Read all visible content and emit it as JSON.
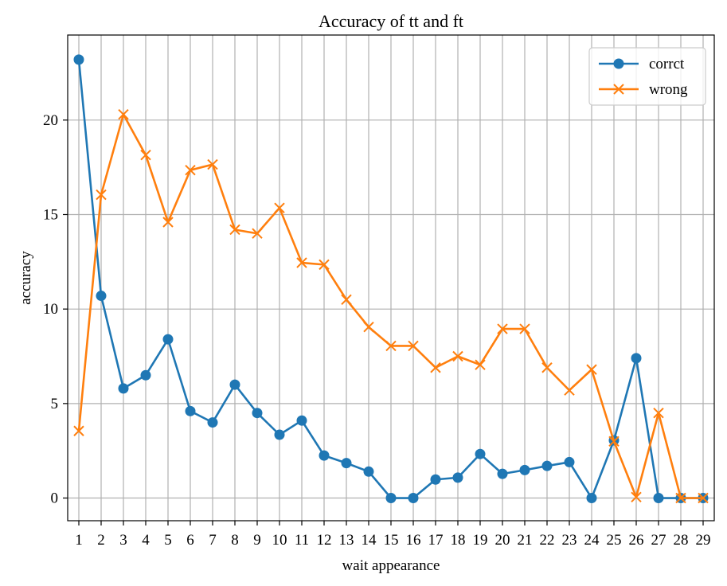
{
  "chart_data": {
    "type": "line",
    "title": "Accuracy of tt and ft",
    "xlabel": "wait appearance",
    "ylabel": "accuracy",
    "x": [
      1,
      2,
      3,
      4,
      5,
      6,
      7,
      8,
      9,
      10,
      11,
      12,
      13,
      14,
      15,
      16,
      17,
      18,
      19,
      20,
      21,
      22,
      23,
      24,
      25,
      26,
      27,
      28,
      29
    ],
    "xlim": [
      0.5,
      29.5
    ],
    "ylim": [
      -1.2,
      24.5
    ],
    "yticks": [
      0,
      5,
      10,
      15,
      20
    ],
    "grid": true,
    "legend_position": "top-right",
    "series": [
      {
        "name": "corrct",
        "color": "#1f77b4",
        "marker": "circle",
        "values": [
          23.2,
          10.7,
          5.8,
          6.5,
          8.4,
          4.6,
          4.0,
          6.0,
          4.5,
          3.35,
          4.1,
          2.25,
          1.85,
          1.4,
          0.0,
          0.0,
          0.98,
          1.08,
          2.33,
          1.28,
          1.48,
          1.7,
          1.9,
          0.0,
          3.05,
          7.4,
          0.0,
          0.0,
          0.0
        ]
      },
      {
        "name": "wrong",
        "color": "#ff7f0e",
        "marker": "x",
        "values": [
          3.55,
          16.05,
          20.3,
          18.15,
          14.6,
          17.35,
          17.65,
          14.2,
          14.0,
          15.35,
          12.45,
          12.35,
          10.5,
          9.05,
          8.05,
          8.05,
          6.9,
          7.5,
          7.05,
          8.95,
          8.95,
          6.9,
          5.7,
          6.8,
          3.0,
          0.05,
          4.5,
          0.0,
          0.0
        ]
      }
    ]
  }
}
